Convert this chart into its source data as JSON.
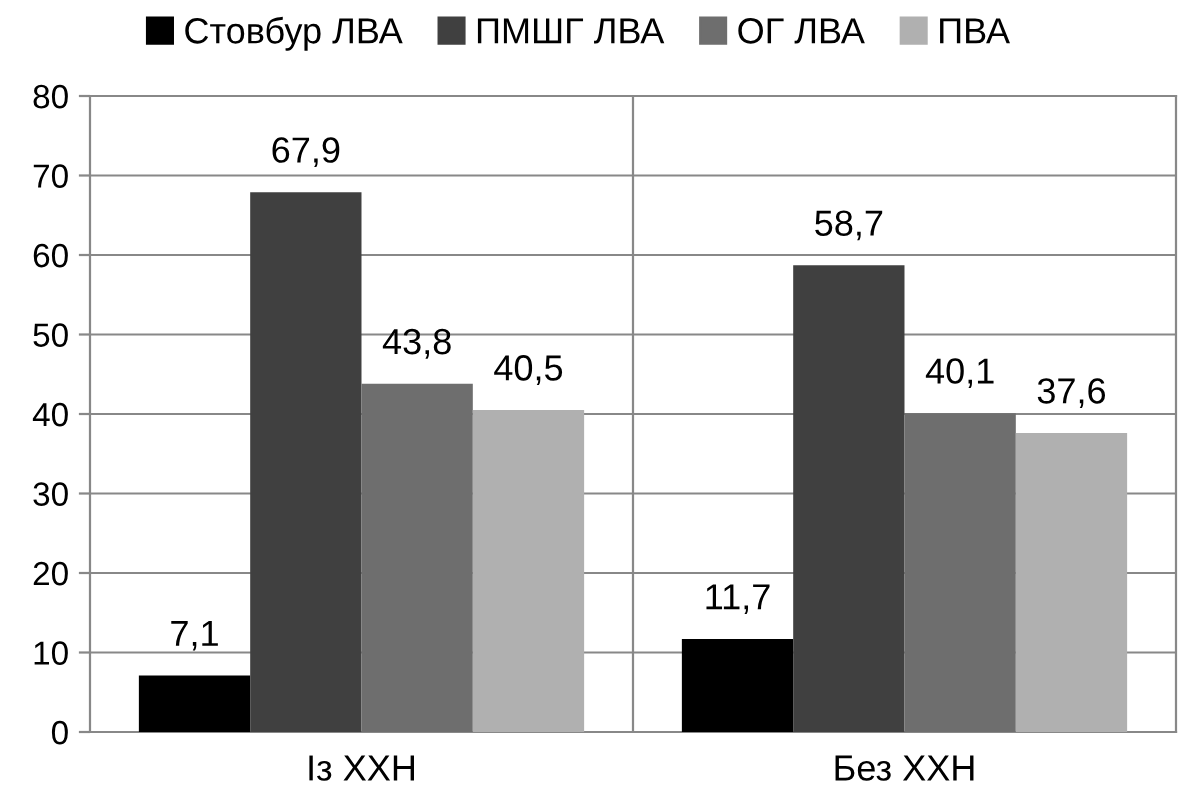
{
  "chart_data": {
    "type": "bar",
    "categories": [
      "Із ХХН",
      "Без ХХН"
    ],
    "series": [
      {
        "name": "Стовбур ЛВА",
        "color": "#000000",
        "values": [
          7.1,
          11.7
        ],
        "value_labels": [
          "7,1",
          "11,7"
        ]
      },
      {
        "name": "ПМШГ ЛВА",
        "color": "#404040",
        "values": [
          67.9,
          58.7
        ],
        "value_labels": [
          "67,9",
          "58,7"
        ]
      },
      {
        "name": "ОГ ЛВА",
        "color": "#6e6e6e",
        "values": [
          43.8,
          40.1
        ],
        "value_labels": [
          "43,8",
          "40,1"
        ]
      },
      {
        "name": "ПВА",
        "color": "#b0b0b0",
        "values": [
          40.5,
          37.6
        ],
        "value_labels": [
          "40,5",
          "37,6"
        ]
      }
    ],
    "ylim": [
      0,
      80
    ],
    "yticks": [
      0,
      10,
      20,
      30,
      40,
      50,
      60,
      70,
      80
    ],
    "grid": true,
    "legend": "top"
  }
}
